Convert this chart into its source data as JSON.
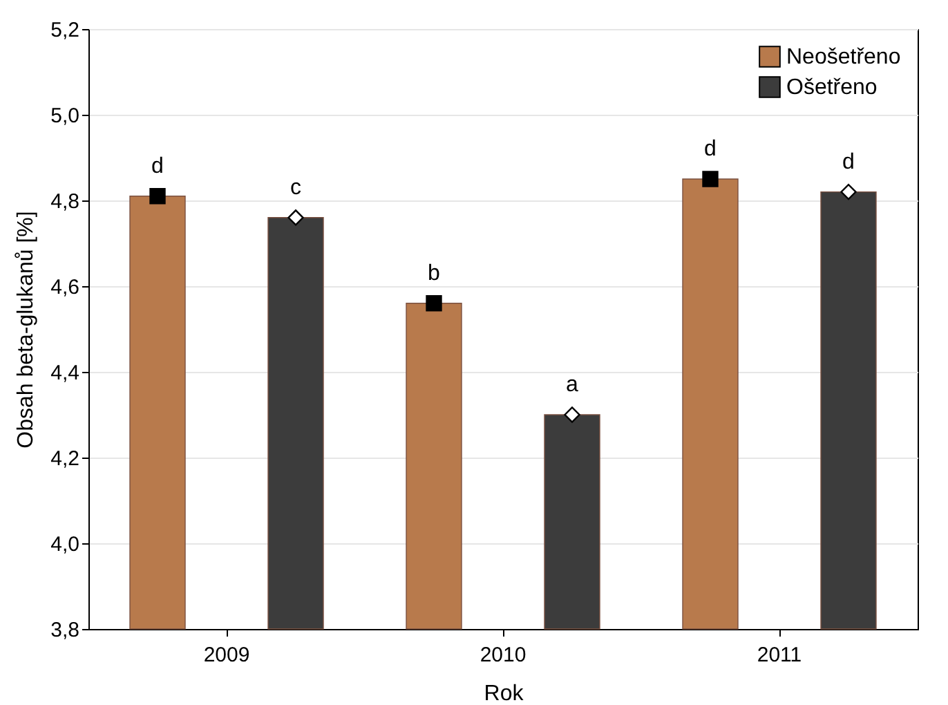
{
  "chart_data": {
    "type": "bar",
    "xlabel": "Rok",
    "ylabel": "Obsah beta-glukanů [%]",
    "categories": [
      "2009",
      "2010",
      "2011"
    ],
    "series": [
      {
        "name": "Neošetřeno",
        "color": "#b87a4c",
        "values": [
          4.81,
          4.56,
          4.85
        ],
        "value_labels": [
          "d",
          "b",
          "d"
        ]
      },
      {
        "name": "Ošetřeno",
        "color": "#3c3c3c",
        "values": [
          4.76,
          4.3,
          4.82
        ],
        "value_labels": [
          "c",
          "a",
          "d"
        ]
      },
      {
        "type": "scatter",
        "color": "#000000",
        "marker": "square",
        "values": [
          4.81,
          4.56,
          4.85
        ]
      },
      {
        "type": "scatter",
        "color": "#ffffff",
        "marker": "diamond",
        "values": [
          4.76,
          4.3,
          4.82
        ]
      }
    ],
    "ylim": [
      3.8,
      5.2
    ],
    "yticks": [
      {
        "value": 3.8,
        "label": "3,8"
      },
      {
        "value": 4.0,
        "label": "4,0"
      },
      {
        "value": 4.2,
        "label": "4,2"
      },
      {
        "value": 4.4,
        "label": "4,4"
      },
      {
        "value": 4.6,
        "label": "4,6"
      },
      {
        "value": 4.8,
        "label": "4,8"
      },
      {
        "value": 5.0,
        "label": "5,0"
      },
      {
        "value": 5.2,
        "label": "5,2"
      }
    ],
    "grid": "y",
    "legend": "top right"
  }
}
